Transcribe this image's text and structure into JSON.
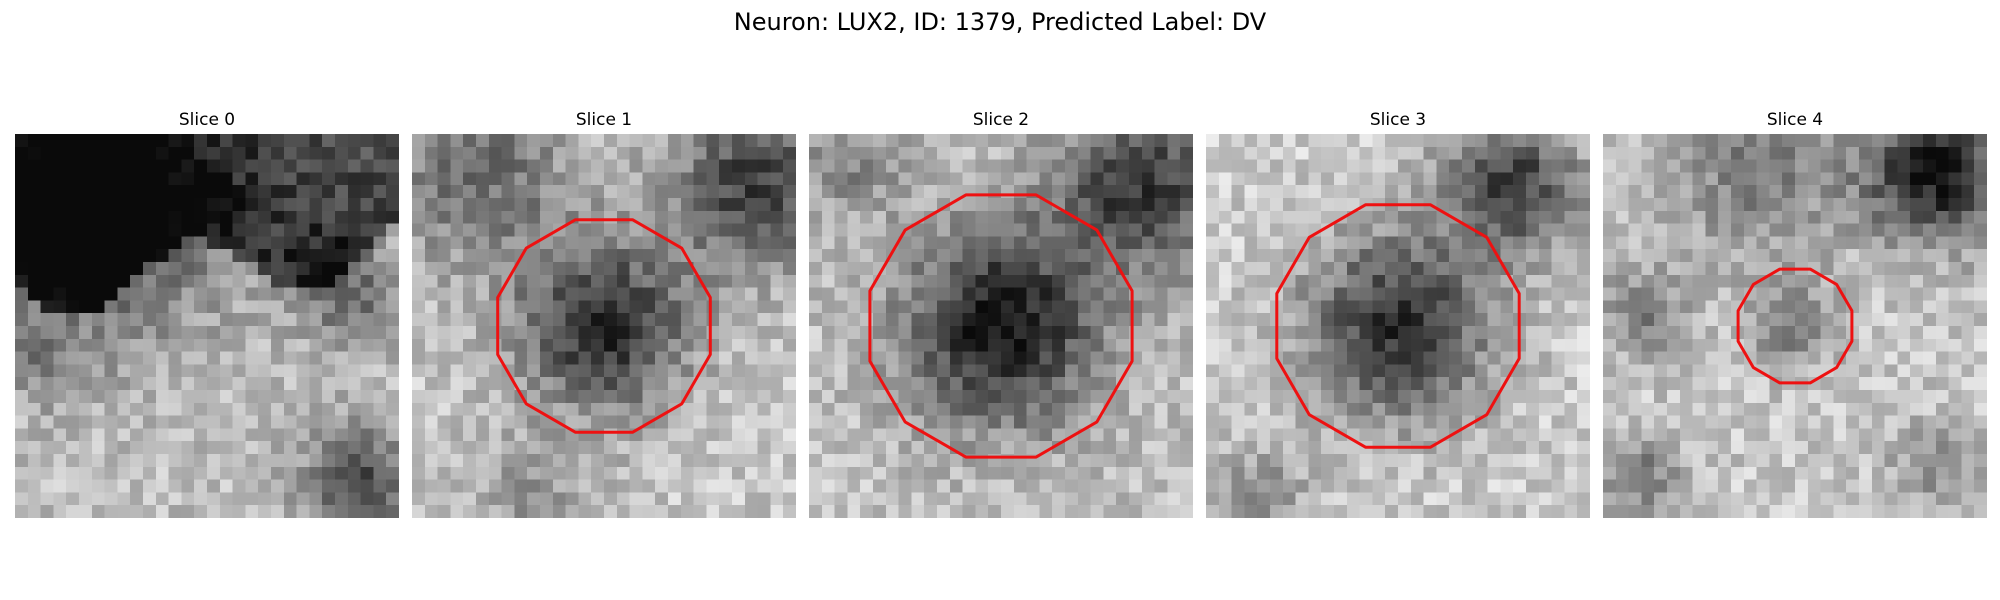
{
  "figure": {
    "title": "Neuron: LUX2, ID: 1379, Predicted Label: DV"
  },
  "panels": [
    {
      "title": "Slice 0",
      "image": "grayscale microscopy tile, dark blob upper-left, bright textured region below",
      "has_outline": false
    },
    {
      "title": "Slice 1",
      "image": "grayscale microscopy tile with dark cell body at center",
      "has_outline": true,
      "outline_radius_px": 4.3
    },
    {
      "title": "Slice 2",
      "image": "grayscale microscopy tile with large dark cell body at center",
      "has_outline": true,
      "outline_radius_px": 5.3
    },
    {
      "title": "Slice 3",
      "image": "grayscale microscopy tile with dark cell body at center",
      "has_outline": true,
      "outline_radius_px": 4.9
    },
    {
      "title": "Slice 4",
      "image": "grayscale microscopy tile with small faint cell at center",
      "has_outline": true,
      "outline_radius_px": 2.3
    }
  ],
  "colors": {
    "outline": "#ee1111",
    "background": "#ffffff"
  }
}
